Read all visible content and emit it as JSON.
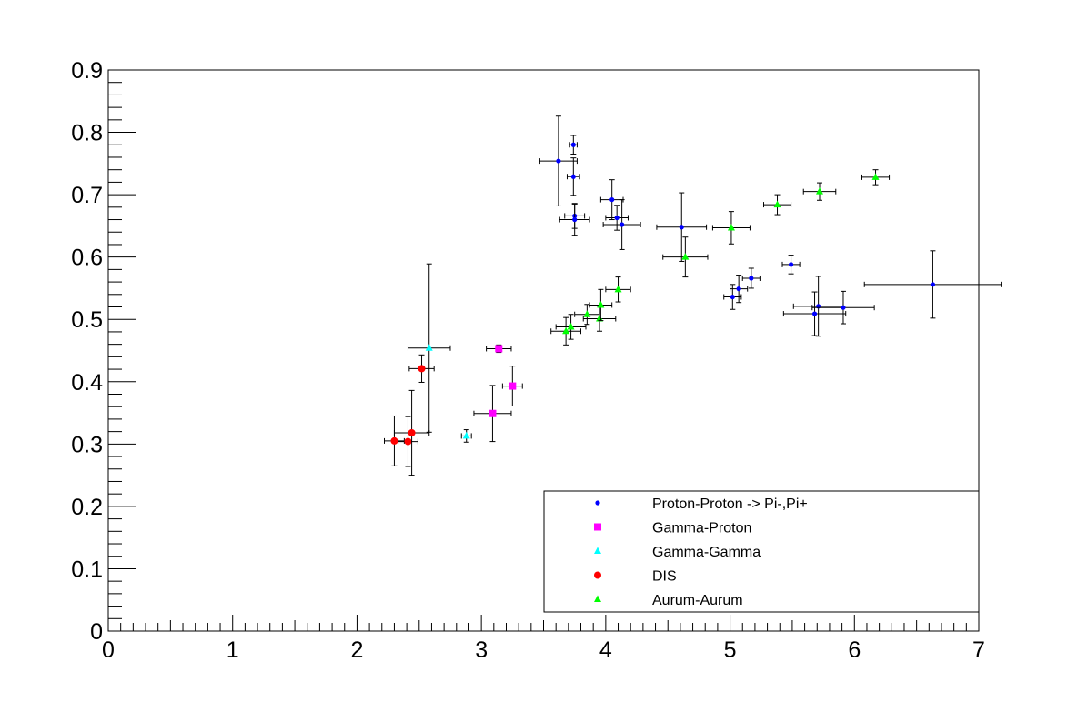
{
  "chart_data": {
    "type": "scatter",
    "title": "",
    "xlabel": "",
    "ylabel": "",
    "xlim": [
      0,
      7
    ],
    "ylim": [
      0,
      0.9
    ],
    "x_ticks": [
      "0",
      "1",
      "2",
      "3",
      "4",
      "5",
      "6",
      "7"
    ],
    "y_ticks": [
      "0",
      "0.1",
      "0.2",
      "0.3",
      "0.4",
      "0.5",
      "0.6",
      "0.7",
      "0.8",
      "0.9"
    ],
    "grid": false,
    "legend_position": "bottom-right",
    "series": [
      {
        "name": "Proton-Proton -> Pi-,Pi+",
        "color": "#0000ff",
        "marker": "circle-small",
        "points": [
          {
            "x": 3.62,
            "y": 0.754,
            "xerr": 0.15,
            "yerr": 0.072
          },
          {
            "x": 3.74,
            "y": 0.78,
            "xerr": 0.03,
            "yerr": 0.015
          },
          {
            "x": 3.74,
            "y": 0.729,
            "xerr": 0.05,
            "yerr": 0.03
          },
          {
            "x": 3.75,
            "y": 0.666,
            "xerr": 0.08,
            "yerr": 0.02
          },
          {
            "x": 3.75,
            "y": 0.66,
            "xerr": 0.12,
            "yerr": 0.025
          },
          {
            "x": 4.05,
            "y": 0.692,
            "xerr": 0.09,
            "yerr": 0.032
          },
          {
            "x": 4.09,
            "y": 0.663,
            "xerr": 0.09,
            "yerr": 0.02
          },
          {
            "x": 4.13,
            "y": 0.652,
            "xerr": 0.15,
            "yerr": 0.04
          },
          {
            "x": 4.61,
            "y": 0.648,
            "xerr": 0.2,
            "yerr": 0.055
          },
          {
            "x": 5.02,
            "y": 0.536,
            "xerr": 0.07,
            "yerr": 0.02
          },
          {
            "x": 5.07,
            "y": 0.549,
            "xerr": 0.07,
            "yerr": 0.022
          },
          {
            "x": 5.17,
            "y": 0.566,
            "xerr": 0.07,
            "yerr": 0.016
          },
          {
            "x": 5.49,
            "y": 0.588,
            "xerr": 0.07,
            "yerr": 0.015
          },
          {
            "x": 5.68,
            "y": 0.509,
            "xerr": 0.25,
            "yerr": 0.035
          },
          {
            "x": 5.71,
            "y": 0.521,
            "xerr": 0.2,
            "yerr": 0.048
          },
          {
            "x": 5.91,
            "y": 0.519,
            "xerr": 0.25,
            "yerr": 0.026
          },
          {
            "x": 6.63,
            "y": 0.556,
            "xerr": 0.55,
            "yerr": 0.054
          }
        ]
      },
      {
        "name": "Gamma-Proton",
        "color": "#ff00ff",
        "marker": "square",
        "points": [
          {
            "x": 3.09,
            "y": 0.349,
            "xerr": 0.15,
            "yerr": 0.045
          },
          {
            "x": 3.14,
            "y": 0.453,
            "xerr": 0.1,
            "yerr": 0.006
          },
          {
            "x": 3.25,
            "y": 0.393,
            "xerr": 0.08,
            "yerr": 0.032
          }
        ]
      },
      {
        "name": "Gamma-Gamma",
        "color": "#00ffff",
        "marker": "triangle",
        "points": [
          {
            "x": 2.58,
            "y": 0.454,
            "xerr": 0.17,
            "yerr": 0.135
          },
          {
            "x": 2.88,
            "y": 0.313,
            "xerr": 0.04,
            "yerr": 0.01
          }
        ]
      },
      {
        "name": "DIS",
        "color": "#ff0000",
        "marker": "circle",
        "points": [
          {
            "x": 2.3,
            "y": 0.305,
            "xerr": 0.08,
            "yerr": 0.04
          },
          {
            "x": 2.41,
            "y": 0.304,
            "xerr": 0.08,
            "yerr": 0.04
          },
          {
            "x": 2.44,
            "y": 0.318,
            "xerr": 0.14,
            "yerr": 0.068
          },
          {
            "x": 2.52,
            "y": 0.421,
            "xerr": 0.1,
            "yerr": 0.022
          }
        ]
      },
      {
        "name": "Aurum-Aurum",
        "color": "#00ff00",
        "marker": "triangle",
        "points": [
          {
            "x": 3.68,
            "y": 0.481,
            "xerr": 0.12,
            "yerr": 0.022
          },
          {
            "x": 3.72,
            "y": 0.488,
            "xerr": 0.12,
            "yerr": 0.02
          },
          {
            "x": 3.85,
            "y": 0.508,
            "xerr": 0.1,
            "yerr": 0.016
          },
          {
            "x": 3.95,
            "y": 0.501,
            "xerr": 0.13,
            "yerr": 0.02
          },
          {
            "x": 3.96,
            "y": 0.523,
            "xerr": 0.09,
            "yerr": 0.025
          },
          {
            "x": 4.1,
            "y": 0.548,
            "xerr": 0.1,
            "yerr": 0.02
          },
          {
            "x": 4.64,
            "y": 0.6,
            "xerr": 0.18,
            "yerr": 0.032
          },
          {
            "x": 5.01,
            "y": 0.647,
            "xerr": 0.15,
            "yerr": 0.026
          },
          {
            "x": 5.38,
            "y": 0.684,
            "xerr": 0.11,
            "yerr": 0.016
          },
          {
            "x": 5.72,
            "y": 0.705,
            "xerr": 0.13,
            "yerr": 0.014
          },
          {
            "x": 6.17,
            "y": 0.728,
            "xerr": 0.11,
            "yerr": 0.012
          }
        ]
      }
    ]
  }
}
